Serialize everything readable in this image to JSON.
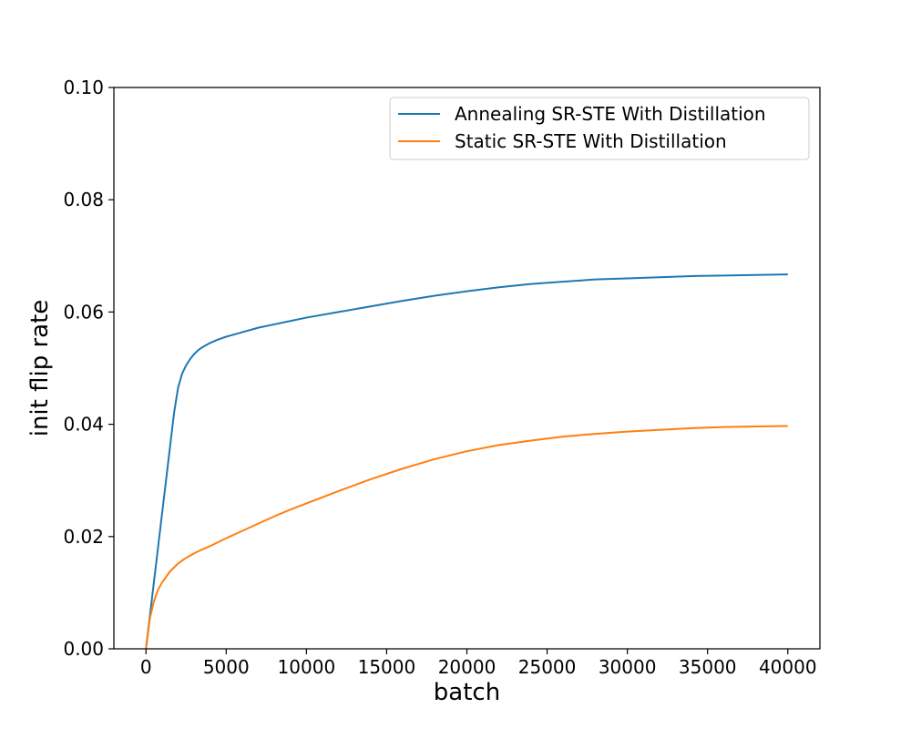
{
  "chart_data": {
    "type": "line",
    "title": "",
    "xlabel": "batch",
    "ylabel": "init flip rate",
    "xlim": [
      -2000,
      42000
    ],
    "ylim": [
      0,
      0.1
    ],
    "xticks": [
      0,
      5000,
      10000,
      15000,
      20000,
      25000,
      30000,
      35000,
      40000
    ],
    "xtick_labels": [
      "0",
      "5000",
      "10000",
      "15000",
      "20000",
      "25000",
      "30000",
      "35000",
      "40000"
    ],
    "yticks": [
      0,
      0.02,
      0.04,
      0.06,
      0.08,
      0.1
    ],
    "ytick_labels": [
      "0.00",
      "0.02",
      "0.04",
      "0.06",
      "0.08",
      "0.10"
    ],
    "grid": false,
    "legend_position": "upper right",
    "series": [
      {
        "name": "Annealing SR-STE With Distillation",
        "color": "#1f77b4",
        "x": [
          0,
          250,
          500,
          750,
          1000,
          1250,
          1500,
          1750,
          2000,
          2250,
          2500,
          2750,
          3000,
          3250,
          3500,
          4000,
          4500,
          5000,
          5500,
          6000,
          7000,
          8000,
          9000,
          10000,
          12000,
          14000,
          16000,
          18000,
          20000,
          22000,
          24000,
          26000,
          28000,
          30000,
          32000,
          34000,
          36000,
          38000,
          40000
        ],
        "y": [
          0,
          0.006,
          0.012,
          0.018,
          0.024,
          0.03,
          0.036,
          0.042,
          0.0465,
          0.049,
          0.0505,
          0.0516,
          0.0525,
          0.0532,
          0.0537,
          0.0545,
          0.0551,
          0.0556,
          0.056,
          0.0564,
          0.0572,
          0.0578,
          0.0584,
          0.059,
          0.06,
          0.061,
          0.062,
          0.0629,
          0.0637,
          0.0644,
          0.065,
          0.0654,
          0.0658,
          0.066,
          0.0662,
          0.0664,
          0.0665,
          0.0666,
          0.0667
        ]
      },
      {
        "name": "Static SR-STE With Distillation",
        "color": "#ff7f0e",
        "x": [
          0,
          250,
          500,
          750,
          1000,
          1500,
          2000,
          2500,
          3000,
          3500,
          4000,
          5000,
          6000,
          7000,
          8000,
          9000,
          10000,
          12000,
          14000,
          16000,
          18000,
          20000,
          22000,
          24000,
          26000,
          28000,
          30000,
          32000,
          34000,
          36000,
          38000,
          40000
        ],
        "y": [
          0,
          0.0055,
          0.0085,
          0.0105,
          0.0118,
          0.0138,
          0.0152,
          0.0162,
          0.017,
          0.0177,
          0.0183,
          0.0197,
          0.021,
          0.0223,
          0.0236,
          0.0248,
          0.0259,
          0.0281,
          0.0302,
          0.0321,
          0.0338,
          0.0352,
          0.0363,
          0.0371,
          0.0378,
          0.0383,
          0.0387,
          0.039,
          0.0393,
          0.0395,
          0.0396,
          0.0397
        ]
      }
    ]
  }
}
